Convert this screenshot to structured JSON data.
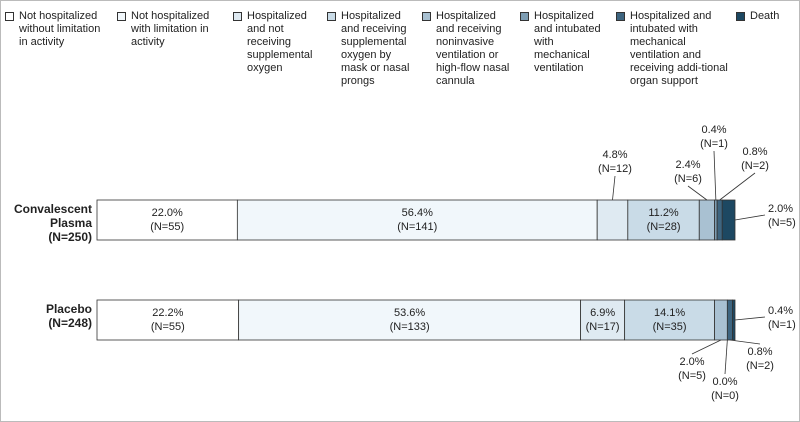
{
  "chart_data": {
    "type": "stacked-bar-horizontal",
    "categories": [
      "Convalescent Plasma",
      "Placebo"
    ],
    "category_counts": [
      "(N=250)",
      "(N=248)"
    ],
    "xlim": [
      0,
      100
    ],
    "series": [
      {
        "name": "Not hospitalized without limitation in activity",
        "color": "#ffffff",
        "values": [
          22.0,
          22.2
        ],
        "value_labels": [
          "22.0%",
          "22.2%"
        ],
        "count_labels": [
          "(N=55)",
          "(N=55)"
        ]
      },
      {
        "name": "Not hospitalized with limitation in activity",
        "color": "#f1f7fb",
        "values": [
          56.4,
          53.6
        ],
        "value_labels": [
          "56.4%",
          "53.6%"
        ],
        "count_labels": [
          "(N=141)",
          "(N=133)"
        ]
      },
      {
        "name": "Hospitalized and not receiving supplemental oxygen",
        "color": "#dfeaf2",
        "values": [
          4.8,
          6.9
        ],
        "value_labels": [
          "4.8%",
          "6.9%"
        ],
        "count_labels": [
          "(N=12)",
          "(N=17)"
        ]
      },
      {
        "name": "Hospitalized and receiving supplemental oxygen by mask or nasal prongs",
        "color": "#c9dbe7",
        "values": [
          11.2,
          14.1
        ],
        "value_labels": [
          "11.2%",
          "14.1%"
        ],
        "count_labels": [
          "(N=28)",
          "(N=35)"
        ]
      },
      {
        "name": "Hospitalized and receiving noninvasive ventilation or high-flow nasal cannula",
        "color": "#a9c1d2",
        "values": [
          2.4,
          2.0
        ],
        "value_labels": [
          "2.4%",
          "2.0%"
        ],
        "count_labels": [
          "(N=6)",
          "(N=5)"
        ]
      },
      {
        "name": "Hospitalized and intubated with mechanical ventilation",
        "color": "#7d9db3",
        "values": [
          0.4,
          0.0
        ],
        "value_labels": [
          "0.4%",
          "0.0%"
        ],
        "count_labels": [
          "(N=1)",
          "(N=0)"
        ]
      },
      {
        "name": "Hospitalized and intubated with mechanical ventilation and receiving addi-tional organ support",
        "color": "#3e6580",
        "values": [
          0.8,
          0.8
        ],
        "value_labels": [
          "0.8%",
          "0.8%"
        ],
        "count_labels": [
          "(N=2)",
          "(N=2)"
        ]
      },
      {
        "name": "Death",
        "color": "#1d4862",
        "values": [
          2.0,
          0.4
        ],
        "value_labels": [
          "2.0%",
          "0.4%"
        ],
        "count_labels": [
          "(N=5)",
          "(N=1)"
        ]
      }
    ]
  }
}
